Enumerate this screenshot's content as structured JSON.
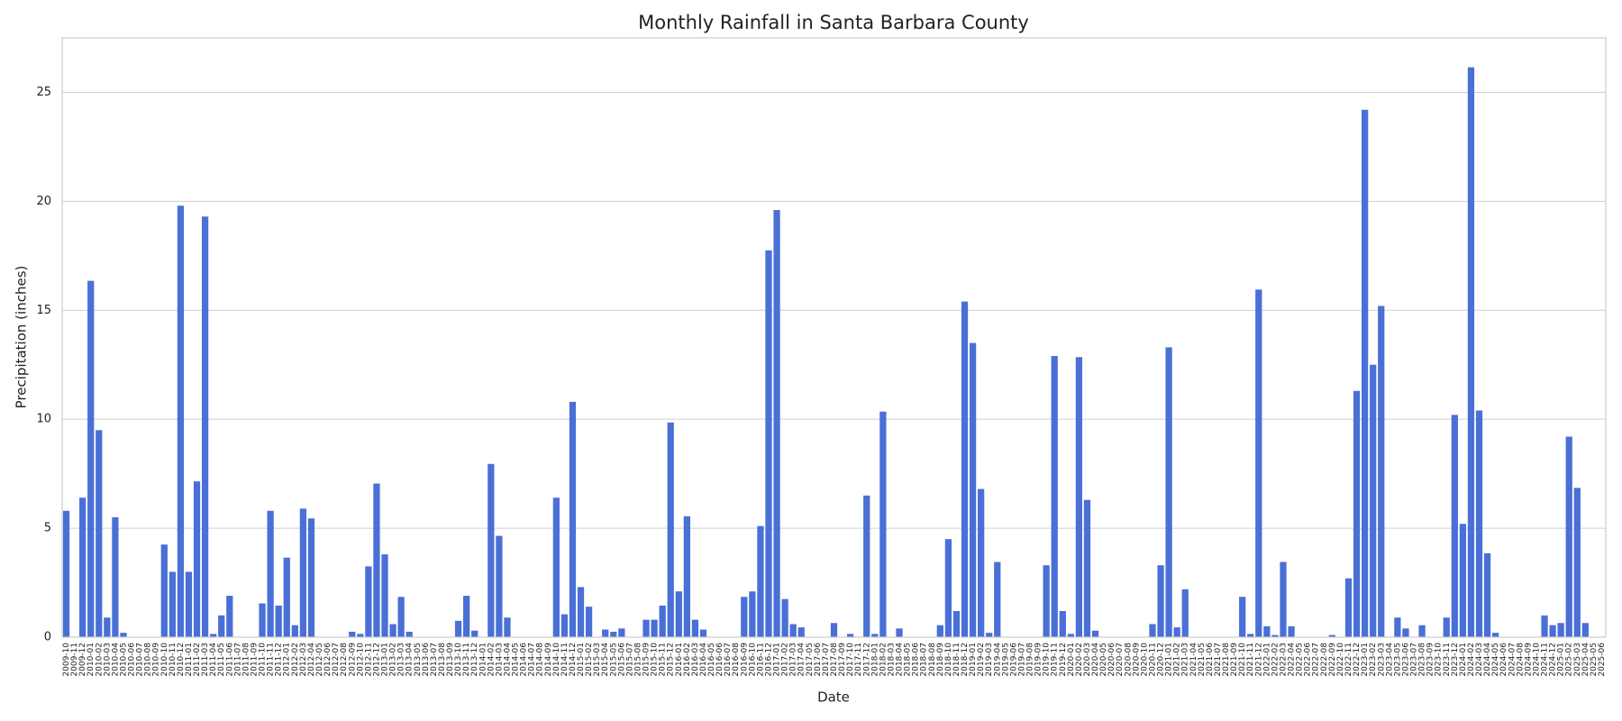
{
  "chart_data": {
    "type": "bar",
    "title": "Monthly Rainfall in Santa Barbara County",
    "x_label": "Date",
    "y_label": "Precipitation (inches)",
    "color": "#4a6fd6",
    "grid": true,
    "ylim": [
      0,
      27.5
    ],
    "yticks": [
      0,
      5,
      10,
      15,
      20,
      25
    ],
    "categories": [
      "2009-10",
      "2009-11",
      "2009-12",
      "2010-01",
      "2010-02",
      "2010-03",
      "2010-04",
      "2010-05",
      "2010-06",
      "2010-07",
      "2010-08",
      "2010-09",
      "2010-10",
      "2010-11",
      "2010-12",
      "2011-01",
      "2011-02",
      "2011-03",
      "2011-04",
      "2011-05",
      "2011-06",
      "2011-07",
      "2011-08",
      "2011-09",
      "2011-10",
      "2011-11",
      "2011-12",
      "2012-01",
      "2012-02",
      "2012-03",
      "2012-04",
      "2012-05",
      "2012-06",
      "2012-07",
      "2012-08",
      "2012-09",
      "2012-10",
      "2012-11",
      "2012-12",
      "2013-01",
      "2013-02",
      "2013-03",
      "2013-04",
      "2013-05",
      "2013-06",
      "2013-07",
      "2013-08",
      "2013-09",
      "2013-10",
      "2013-11",
      "2013-12",
      "2014-01",
      "2014-02",
      "2014-03",
      "2014-04",
      "2014-05",
      "2014-06",
      "2014-07",
      "2014-08",
      "2014-09",
      "2014-10",
      "2014-11",
      "2014-12",
      "2015-01",
      "2015-02",
      "2015-03",
      "2015-04",
      "2015-05",
      "2015-06",
      "2015-07",
      "2015-08",
      "2015-09",
      "2015-10",
      "2015-11",
      "2015-12",
      "2016-01",
      "2016-02",
      "2016-03",
      "2016-04",
      "2016-05",
      "2016-06",
      "2016-07",
      "2016-08",
      "2016-09",
      "2016-10",
      "2016-11",
      "2016-12",
      "2017-01",
      "2017-02",
      "2017-03",
      "2017-04",
      "2017-05",
      "2017-06",
      "2017-07",
      "2017-08",
      "2017-09",
      "2017-10",
      "2017-11",
      "2017-12",
      "2018-01",
      "2018-02",
      "2018-03",
      "2018-04",
      "2018-05",
      "2018-06",
      "2018-07",
      "2018-08",
      "2018-09",
      "2018-10",
      "2018-11",
      "2018-12",
      "2019-01",
      "2019-02",
      "2019-03",
      "2019-04",
      "2019-05",
      "2019-06",
      "2019-07",
      "2019-08",
      "2019-09",
      "2019-10",
      "2019-11",
      "2019-12",
      "2020-01",
      "2020-02",
      "2020-03",
      "2020-04",
      "2020-05",
      "2020-06",
      "2020-07",
      "2020-08",
      "2020-09",
      "2020-10",
      "2020-11",
      "2020-12",
      "2021-01",
      "2021-02",
      "2021-03",
      "2021-04",
      "2021-05",
      "2021-06",
      "2021-07",
      "2021-08",
      "2021-09",
      "2021-10",
      "2021-11",
      "2021-12",
      "2022-01",
      "2022-02",
      "2022-03",
      "2022-04",
      "2022-05",
      "2022-06",
      "2022-07",
      "2022-08",
      "2022-09",
      "2022-10",
      "2022-11",
      "2022-12",
      "2023-01",
      "2023-02",
      "2023-03",
      "2023-04",
      "2023-05",
      "2023-06",
      "2023-07",
      "2023-08",
      "2023-09",
      "2023-10",
      "2023-11",
      "2023-12",
      "2024-01",
      "2024-02",
      "2024-03",
      "2024-04",
      "2024-05",
      "2024-06",
      "2024-07",
      "2024-08",
      "2024-09",
      "2024-10",
      "2024-11",
      "2024-12",
      "2025-01",
      "2025-02",
      "2025-03",
      "2025-04",
      "2025-05",
      "2025-06"
    ],
    "values": [
      5.8,
      0,
      6.4,
      16.35,
      9.5,
      0.9,
      5.5,
      0.2,
      0,
      0,
      0,
      0,
      4.25,
      3.0,
      19.8,
      3.0,
      7.15,
      19.3,
      0.15,
      1.0,
      1.9,
      0,
      0,
      0,
      1.55,
      5.8,
      1.45,
      3.65,
      0.55,
      5.9,
      5.45,
      0,
      0,
      0,
      0,
      0.25,
      0.15,
      3.25,
      7.05,
      3.8,
      0.6,
      1.85,
      0.25,
      0,
      0,
      0,
      0,
      0,
      0.75,
      1.9,
      0.3,
      0,
      7.95,
      4.65,
      0.9,
      0,
      0,
      0,
      0,
      0,
      6.4,
      1.05,
      10.8,
      2.3,
      1.4,
      0,
      0.35,
      0.25,
      0.4,
      0,
      0,
      0.8,
      0.8,
      1.45,
      9.85,
      2.1,
      5.55,
      0.8,
      0.35,
      0,
      0,
      0,
      0,
      1.85,
      2.1,
      5.1,
      17.75,
      19.6,
      1.75,
      0.6,
      0.45,
      0,
      0,
      0,
      0.65,
      0,
      0.15,
      0,
      6.5,
      0.15,
      10.35,
      0,
      0.4,
      0,
      0,
      0,
      0,
      0.55,
      4.5,
      1.2,
      15.4,
      13.5,
      6.8,
      0.2,
      3.45,
      0,
      0,
      0,
      0,
      0,
      3.3,
      12.9,
      1.2,
      0.15,
      12.85,
      6.3,
      0.3,
      0,
      0,
      0,
      0,
      0,
      0,
      0.6,
      3.3,
      13.3,
      0.45,
      2.2,
      0,
      0,
      0,
      0,
      0,
      0,
      1.85,
      0.15,
      15.95,
      0.5,
      0.1,
      3.45,
      0.5,
      0,
      0,
      0,
      0,
      0.1,
      0,
      2.7,
      11.3,
      24.2,
      12.5,
      15.2,
      0,
      0.9,
      0.4,
      0,
      0.55,
      0,
      0,
      0.9,
      10.2,
      5.2,
      26.15,
      10.4,
      3.85,
      0.2,
      0,
      0,
      0,
      0,
      0,
      1.0,
      0.55,
      0.65,
      9.2,
      6.85,
      0.65,
      0,
      0
    ]
  }
}
